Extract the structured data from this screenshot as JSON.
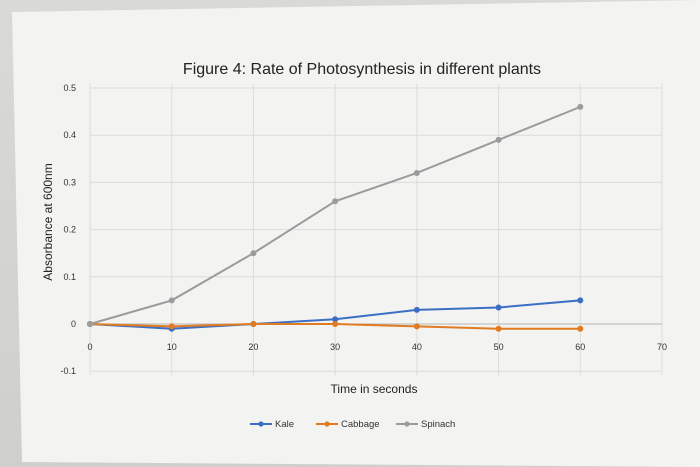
{
  "chart_data": {
    "type": "line",
    "title": "Figure 4: Rate of Photosynthesis in different plants",
    "xlabel": "Time in seconds",
    "ylabel": "Absorbance at 600nm",
    "x": [
      0,
      10,
      20,
      30,
      40,
      50,
      60
    ],
    "xlim": [
      0,
      70
    ],
    "ylim": [
      -0.1,
      0.5
    ],
    "xticks": [
      "0",
      "10",
      "20",
      "30",
      "40",
      "50",
      "60",
      "70"
    ],
    "yticks": [
      "-0.1",
      "0",
      "0.1",
      "0.2",
      "0.3",
      "0.4",
      "0.5"
    ],
    "grid": true,
    "legend_position": "bottom",
    "series": [
      {
        "name": "Kale",
        "color": "#3b6fc4",
        "values": [
          0,
          -0.01,
          0.0,
          0.01,
          0.03,
          0.035,
          0.05
        ]
      },
      {
        "name": "Cabbage",
        "color": "#e07b22",
        "values": [
          0,
          -0.005,
          0.0,
          0.0,
          -0.005,
          -0.01,
          -0.01
        ]
      },
      {
        "name": "Spinach",
        "color": "#9b9b9b",
        "values": [
          0,
          0.05,
          0.15,
          0.26,
          0.32,
          0.39,
          0.46
        ]
      }
    ]
  }
}
